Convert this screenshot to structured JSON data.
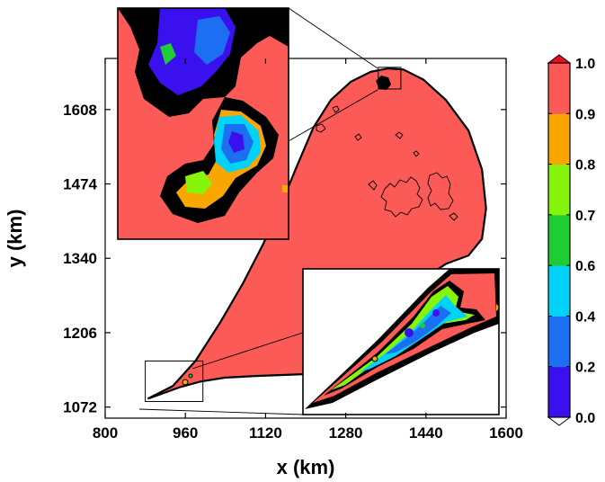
{
  "chart_data": {
    "type": "heatmap",
    "xlabel": "x (km)",
    "ylabel": "y (km)",
    "xlim": [
      800,
      1600
    ],
    "ylim": [
      1052,
      1700
    ],
    "x_ticks": [
      800,
      960,
      1120,
      1280,
      1440,
      1600
    ],
    "y_ticks": [
      1072,
      1206,
      1340,
      1474,
      1608
    ],
    "domain_fill_value": 1.0,
    "domain_outline_km": [
      [
        885,
        1087
      ],
      [
        910,
        1095
      ],
      [
        950,
        1108
      ],
      [
        990,
        1118
      ],
      [
        1040,
        1125
      ],
      [
        1100,
        1128
      ],
      [
        1160,
        1130
      ],
      [
        1220,
        1132
      ],
      [
        1270,
        1136
      ],
      [
        1310,
        1150
      ],
      [
        1350,
        1200
      ],
      [
        1385,
        1255
      ],
      [
        1430,
        1300
      ],
      [
        1480,
        1330
      ],
      [
        1525,
        1345
      ],
      [
        1552,
        1375
      ],
      [
        1560,
        1430
      ],
      [
        1552,
        1500
      ],
      [
        1525,
        1570
      ],
      [
        1480,
        1625
      ],
      [
        1435,
        1662
      ],
      [
        1395,
        1680
      ],
      [
        1365,
        1682
      ],
      [
        1330,
        1676
      ],
      [
        1290,
        1658
      ],
      [
        1250,
        1625
      ],
      [
        1215,
        1575
      ],
      [
        1182,
        1505
      ],
      [
        1150,
        1435
      ],
      [
        1115,
        1365
      ],
      [
        1075,
        1295
      ],
      [
        1030,
        1225
      ],
      [
        980,
        1155
      ],
      [
        935,
        1110
      ],
      [
        885,
        1087
      ]
    ],
    "zoom_boxes_km": [
      {
        "name": "upper",
        "x": [
          1345,
          1390
        ],
        "y": [
          1645,
          1684
        ]
      },
      {
        "name": "lower",
        "x": [
          880,
          995
        ],
        "y": [
          1082,
          1155
        ]
      }
    ],
    "colorbar": {
      "levels": [
        0.0,
        0.2,
        0.4,
        0.6,
        0.7,
        0.8,
        0.9,
        1.0
      ],
      "tick_labels": [
        "0.0",
        "0.2",
        "0.4",
        "0.6",
        "0.7",
        "0.8",
        "0.9",
        "1.0"
      ],
      "colors": [
        "#3b10ee",
        "#1c6ff0",
        "#00d3f7",
        "#1ecd34",
        "#86f40b",
        "#f9a700",
        "#fb5a57"
      ],
      "under_color": "#ffffff",
      "over_color": "#e8101e"
    }
  }
}
